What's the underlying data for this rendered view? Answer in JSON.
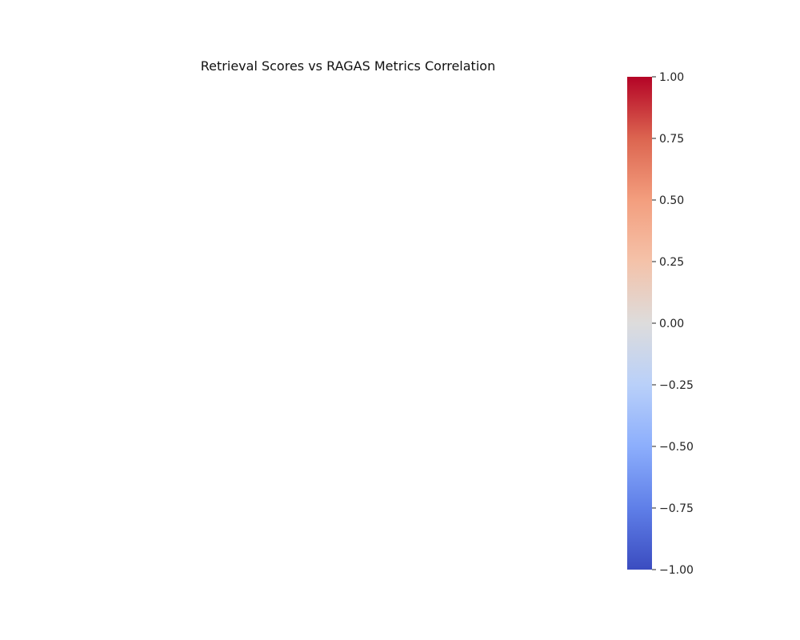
{
  "chart_data": {
    "type": "heatmap",
    "title": "Retrieval Scores vs RAGAS Metrics Correlation",
    "xlabel": "",
    "ylabel": "",
    "rows": [],
    "columns": [],
    "values": [],
    "colorbar": {
      "colormap": "coolwarm",
      "vmin": -1.0,
      "vmax": 1.0,
      "ticks": [
        1.0,
        0.75,
        0.5,
        0.25,
        0.0,
        -0.25,
        -0.5,
        -0.75,
        -1.0
      ],
      "tick_labels": [
        "1.00",
        "0.75",
        "0.50",
        "0.25",
        "0.00",
        "−0.25",
        "−0.50",
        "−0.75",
        "−1.00"
      ],
      "stops": [
        {
          "value": -1.0,
          "color": "#3b4cc0"
        },
        {
          "value": -0.75,
          "color": "#5f7fe8"
        },
        {
          "value": -0.5,
          "color": "#8caefc"
        },
        {
          "value": -0.25,
          "color": "#b9d0f9"
        },
        {
          "value": 0.0,
          "color": "#dddcdc"
        },
        {
          "value": 0.25,
          "color": "#f4c2a9"
        },
        {
          "value": 0.5,
          "color": "#f39e7e"
        },
        {
          "value": 0.75,
          "color": "#dc6550"
        },
        {
          "value": 1.0,
          "color": "#b40426"
        }
      ]
    }
  }
}
